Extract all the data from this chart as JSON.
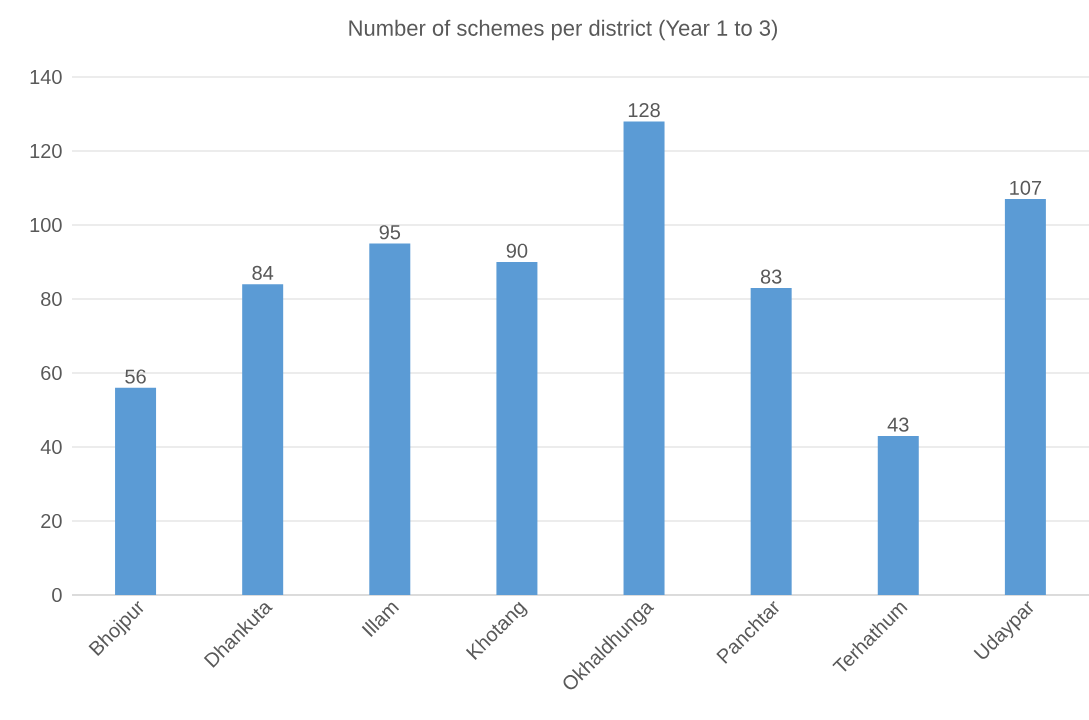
{
  "chart_data": {
    "type": "bar",
    "title": "Number of schemes per district (Year 1 to 3)",
    "categories": [
      "Bhojpur",
      "Dhankuta",
      "Illam",
      "Khotang",
      "Okhaldhunga",
      "Panchtar",
      "Terhathum",
      "Udaypar"
    ],
    "values": [
      56,
      84,
      95,
      90,
      128,
      83,
      43,
      107
    ],
    "color": "#5b9bd5",
    "ylim": [
      0,
      140
    ],
    "yticks": [
      0,
      20,
      40,
      60,
      80,
      100,
      120,
      140
    ],
    "grid": "y",
    "data_labels": true
  }
}
